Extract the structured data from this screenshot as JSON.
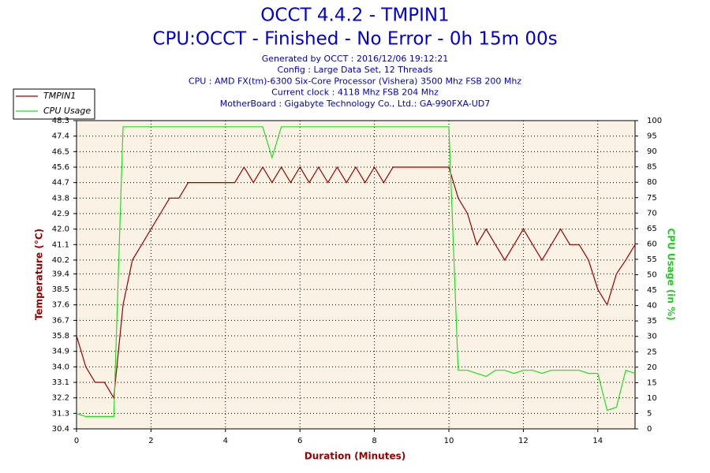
{
  "chart_data": {
    "type": "line",
    "title": "OCCT 4.4.2 - TMPIN1",
    "subtitle_main": "CPU:OCCT - Finished - No Error - 0h 15m 00s",
    "info": [
      "Generated by OCCT : 2016/12/06 19:12:21",
      "Config : Large Data Set, 12 Threads",
      "CPU : AMD FX(tm)-6300 Six-Core Processor (Vishera) 3500 Mhz FSB 200 Mhz",
      "Current clock : 4118 Mhz FSB 204 Mhz",
      "MotherBoard : Gigabyte Technology Co., Ltd.: GA-990FXA-UD7"
    ],
    "xlabel": "Duration (Minutes)",
    "ylabel": "Temperature (°C)",
    "y2label": "CPU Usage (in %)",
    "xlim": [
      0,
      15
    ],
    "xticks": [
      0,
      2,
      4,
      6,
      8,
      10,
      12,
      14
    ],
    "ylim": [
      30.4,
      48.3
    ],
    "yticks": [
      30.4,
      31.3,
      32.2,
      33.1,
      {
        "value": 34,
        "label": "34.0"
      },
      34.9,
      35.8,
      36.7,
      37.6,
      38.5,
      39.4,
      40.2,
      41.1,
      {
        "value": 42,
        "label": "42.0"
      },
      42.9,
      43.8,
      44.7,
      45.6,
      46.5,
      47.4,
      48.3
    ],
    "y2lim": [
      0,
      100
    ],
    "y2ticks": [
      0,
      5,
      10,
      15,
      20,
      25,
      30,
      35,
      40,
      45,
      50,
      55,
      60,
      65,
      70,
      75,
      80,
      85,
      90,
      95,
      100
    ],
    "grid": true,
    "legend": "top-left",
    "x": [
      0,
      0.25,
      0.5,
      0.75,
      1,
      1.25,
      1.5,
      1.75,
      2,
      2.25,
      2.5,
      2.75,
      3,
      3.25,
      3.5,
      3.75,
      4,
      4.25,
      4.5,
      4.75,
      5,
      5.25,
      5.5,
      5.75,
      6,
      6.25,
      6.5,
      6.75,
      7,
      7.25,
      7.5,
      7.75,
      8,
      8.25,
      8.5,
      8.75,
      9,
      9.25,
      9.5,
      9.75,
      10,
      10.25,
      10.5,
      10.75,
      11,
      11.25,
      11.5,
      11.75,
      12,
      12.25,
      12.5,
      12.75,
      13,
      13.25,
      13.5,
      13.75,
      14,
      14.25,
      14.5,
      14.75,
      15
    ],
    "series": [
      {
        "name": "TMPIN1",
        "color": "#990000",
        "axis": "y",
        "values": [
          35.8,
          34.0,
          33.1,
          33.1,
          32.2,
          37.6,
          40.2,
          41.1,
          42.0,
          42.9,
          43.8,
          43.8,
          44.7,
          44.7,
          44.7,
          44.7,
          44.7,
          44.7,
          45.6,
          44.7,
          45.6,
          44.7,
          45.6,
          44.7,
          45.6,
          44.7,
          45.6,
          44.7,
          45.6,
          44.7,
          45.6,
          44.7,
          45.6,
          44.7,
          45.6,
          45.6,
          45.6,
          45.6,
          45.6,
          45.6,
          45.6,
          43.8,
          42.9,
          41.1,
          42.0,
          41.1,
          40.2,
          41.1,
          42.0,
          41.1,
          40.2,
          41.1,
          42.0,
          41.1,
          41.1,
          40.2,
          38.5,
          37.6,
          39.4,
          40.2,
          41.1
        ]
      },
      {
        "name": "CPU Usage",
        "color": "#22dd22",
        "axis": "y2",
        "values": [
          5,
          4,
          4,
          4,
          4,
          98,
          98,
          98,
          98,
          98,
          98,
          98,
          98,
          98,
          98,
          98,
          98,
          98,
          98,
          98,
          98,
          88,
          98,
          98,
          98,
          98,
          98,
          98,
          98,
          98,
          98,
          98,
          98,
          98,
          98,
          98,
          98,
          98,
          98,
          98,
          98,
          19,
          19,
          18,
          17,
          19,
          19,
          18,
          19,
          19,
          18,
          19,
          19,
          19,
          19,
          18,
          18,
          6,
          7,
          19,
          18
        ]
      }
    ]
  }
}
